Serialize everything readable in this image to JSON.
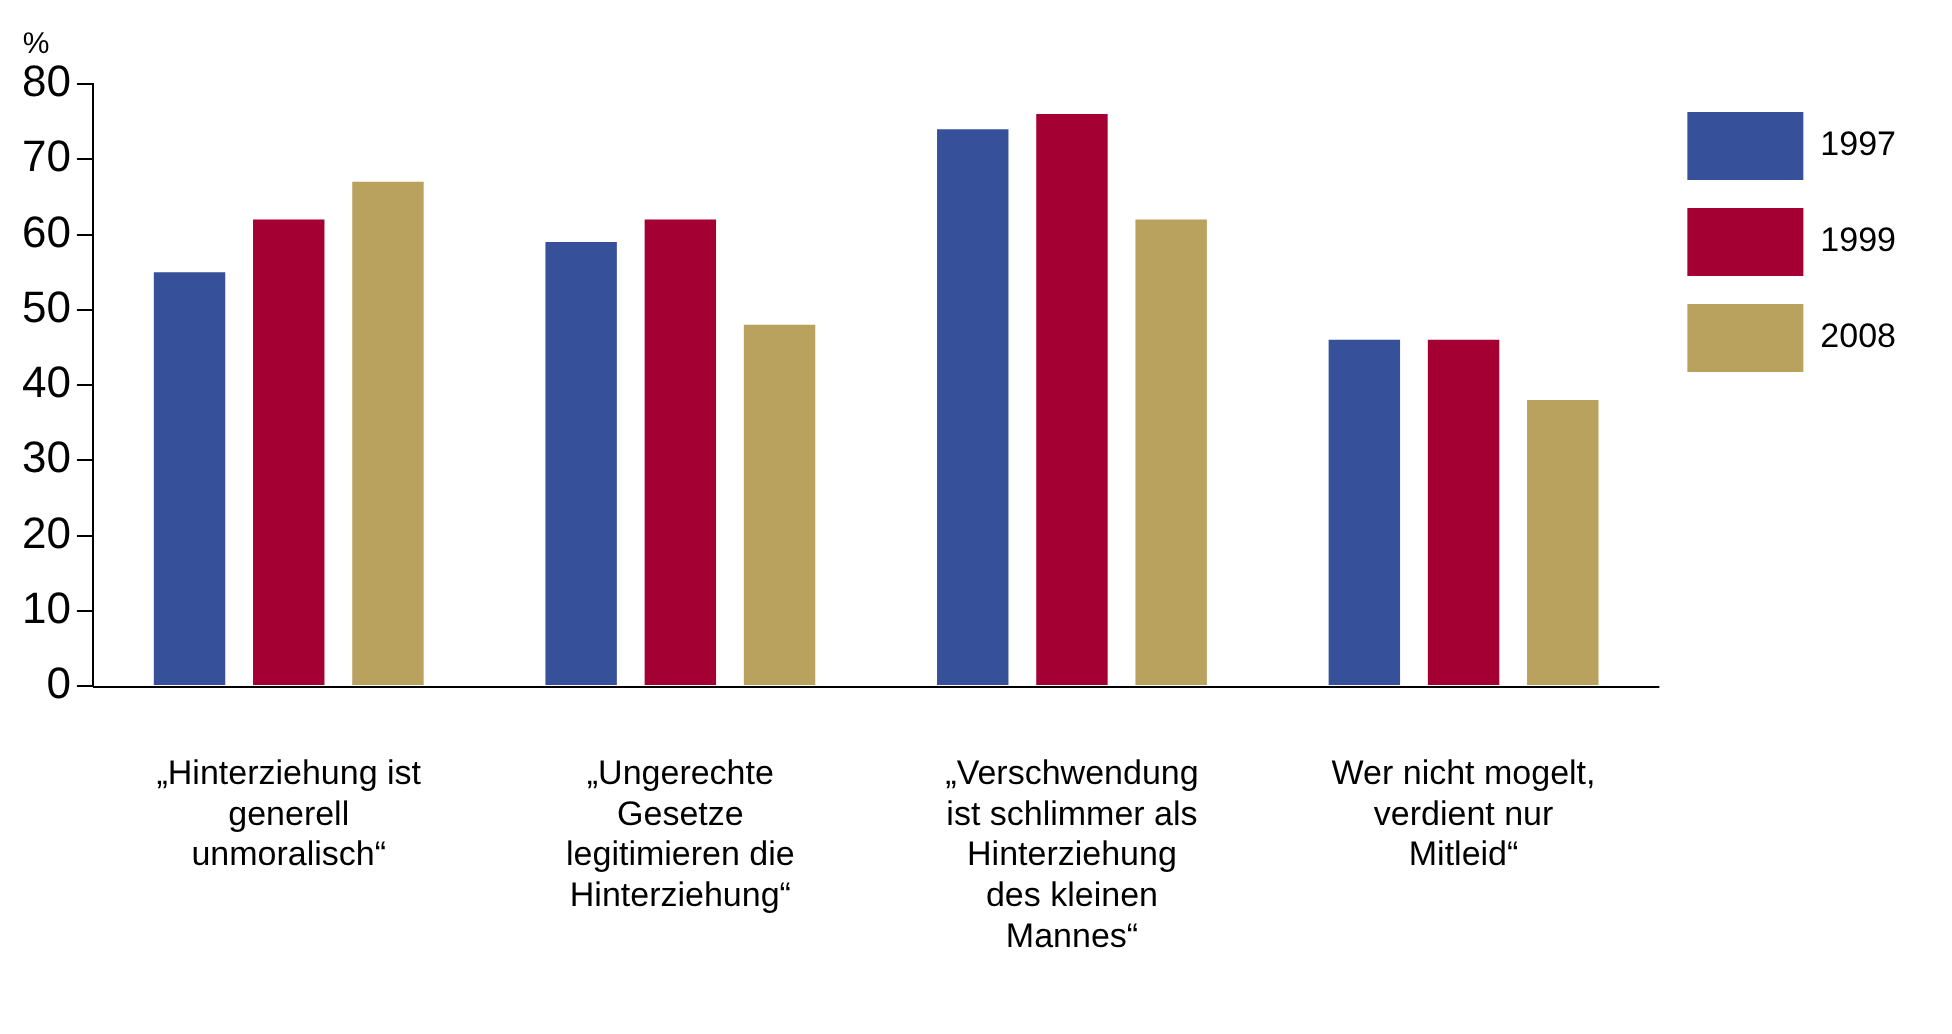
{
  "chart_data": {
    "type": "bar",
    "ylabel": "%",
    "categories": [
      "„Hinterziehung ist generell unmoralisch“",
      "„Ungerechte Gesetze legitimieren die Hinterziehung“",
      "„Verschwendung ist schlimmer als Hinterziehung des kleinen Mannes“",
      "Wer nicht mogelt, verdient nur Mitleid“"
    ],
    "series": [
      {
        "name": "1997",
        "color": "#36509a",
        "values": [
          55,
          59,
          74,
          46
        ]
      },
      {
        "name": "1999",
        "color": "#a50034",
        "values": [
          62,
          62,
          76,
          46
        ]
      },
      {
        "name": "2008",
        "color": "#b9a15e",
        "values": [
          67,
          48,
          62,
          38
        ]
      }
    ],
    "ylim": [
      0,
      80
    ],
    "yticks": [
      0,
      10,
      20,
      30,
      40,
      50,
      60,
      70,
      80
    ],
    "grid": false,
    "legend": "top right"
  }
}
